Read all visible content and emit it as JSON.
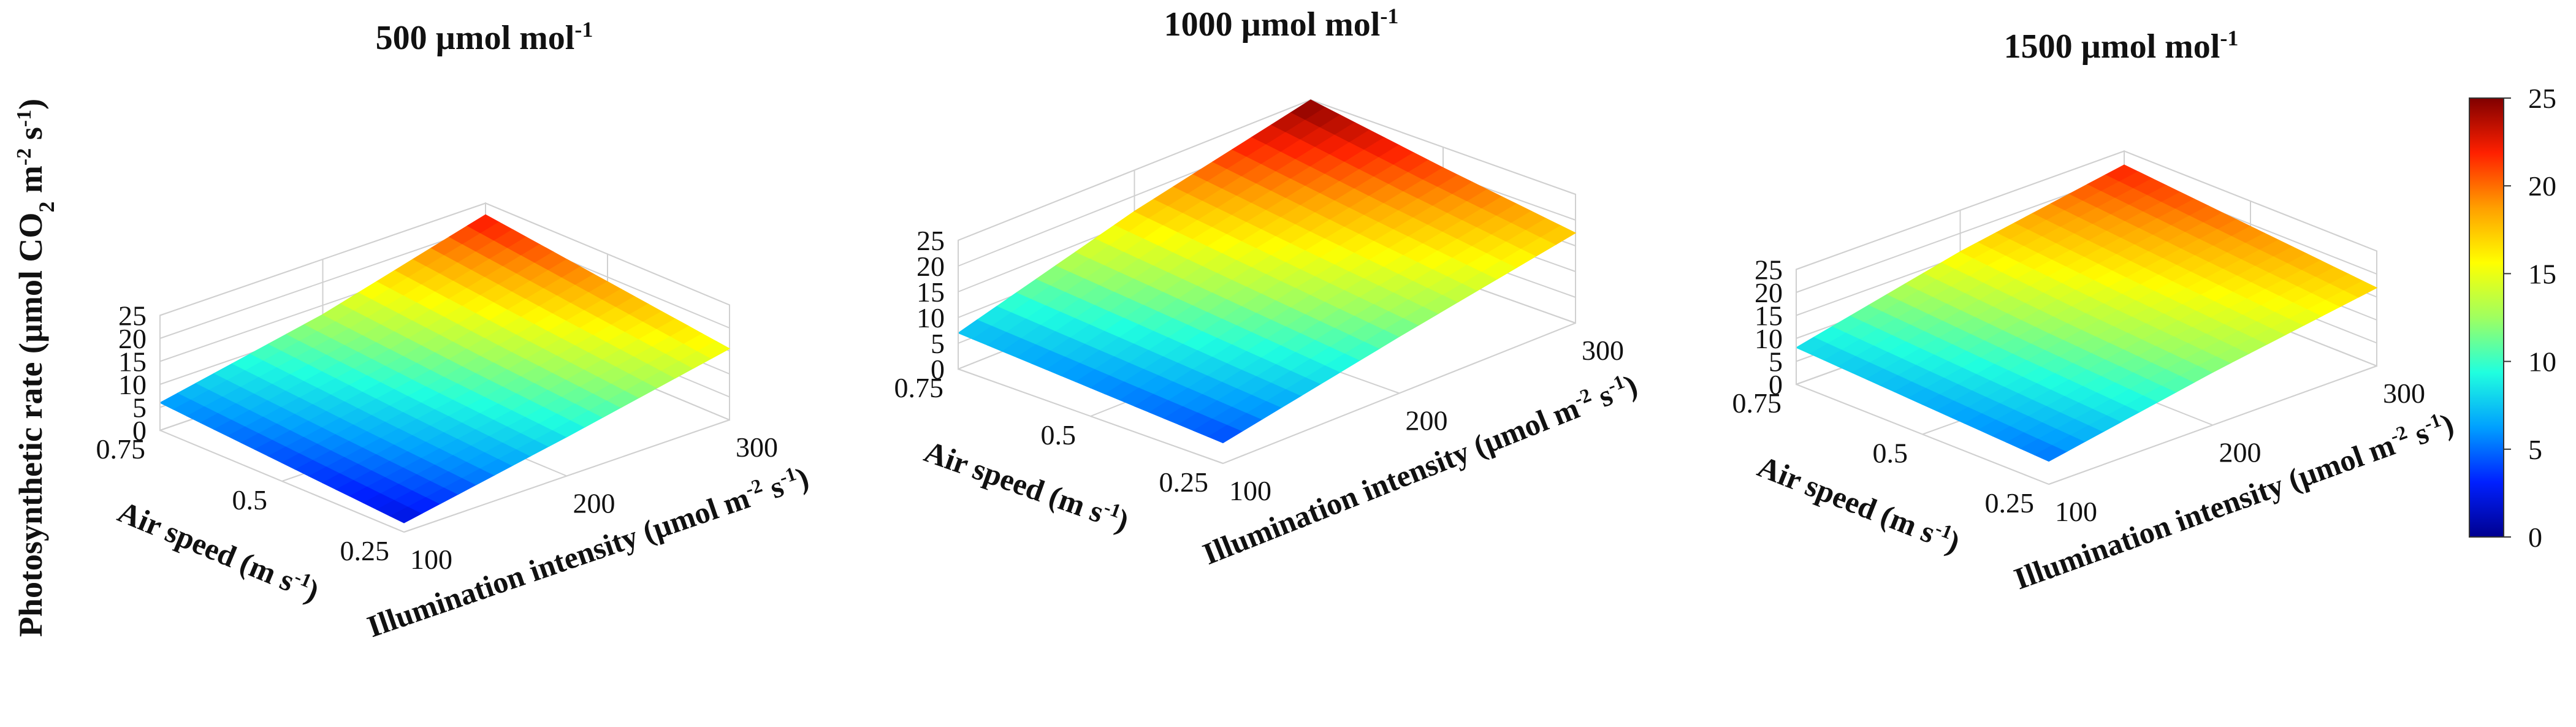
{
  "figure": {
    "ylabel_main": "Photosynthetic rate (µmol CO",
    "ylabel_sub": "2",
    "ylabel_unit": " m",
    "ylabel_exp1": "-2",
    "ylabel_s": " s",
    "ylabel_exp2": "-1",
    "ylabel_close": ")"
  },
  "colorbar": {
    "ticks": [
      "0",
      "5",
      "10",
      "15",
      "20",
      "25"
    ],
    "min": 0,
    "max": 25,
    "colors": [
      "#00008f",
      "#0020ff",
      "#00a0ff",
      "#20ffdf",
      "#9fff60",
      "#ffff00",
      "#ff9f00",
      "#ff2000",
      "#800000"
    ]
  },
  "chart_data": [
    {
      "type": "surface",
      "title": "500 µmol mol",
      "title_exp": "-1",
      "xlabel": "Illumination  intensity  (µmol m",
      "xlabel_exp1": "-2",
      "xlabel_mid": " s",
      "xlabel_exp2": "-1",
      "xlabel_close": ")",
      "ylabel": "Air speed (m s",
      "ylabel_exp": "-1",
      "ylabel_close": ")",
      "x_ticks": [
        "100",
        "200",
        "300"
      ],
      "y_ticks": [
        "0.75",
        "0.5",
        "0.25"
      ],
      "z_ticks": [
        "0",
        "5",
        "10",
        "15",
        "20",
        "25"
      ],
      "x": [
        100,
        200,
        300
      ],
      "y": [
        0.25,
        0.5,
        0.75
      ],
      "zlim": [
        0,
        25
      ],
      "z": [
        [
          2,
          8.5,
          15.5
        ],
        [
          4,
          10.5,
          19
        ],
        [
          6,
          13,
          22.5
        ]
      ]
    },
    {
      "type": "surface",
      "title": "1000 µmol mol",
      "title_exp": "-1",
      "xlabel": "Illumination  intensity  (µmol m",
      "xlabel_exp1": "-2",
      "xlabel_mid": " s",
      "xlabel_exp2": "-1",
      "xlabel_close": ")",
      "ylabel": "Air speed (m s",
      "ylabel_exp": "-1",
      "ylabel_close": ")",
      "x_ticks": [
        "100",
        "200",
        "300"
      ],
      "y_ticks": [
        "0.75",
        "0.5",
        "0.25"
      ],
      "z_ticks": [
        "0",
        "5",
        "10",
        "15",
        "20",
        "25"
      ],
      "x": [
        100,
        200,
        300
      ],
      "y": [
        0.25,
        0.5,
        0.75
      ],
      "zlim": [
        0,
        25
      ],
      "z": [
        [
          4,
          11,
          17.5
        ],
        [
          5.5,
          14,
          21
        ],
        [
          7,
          17,
          25
        ]
      ]
    },
    {
      "type": "surface",
      "title": "1500 µmol mol",
      "title_exp": "-1",
      "xlabel": "Illumination intensity (µmol m",
      "xlabel_exp1": "-2",
      "xlabel_mid": " s",
      "xlabel_exp2": "-1",
      "xlabel_close": ")",
      "ylabel": "Air speed (m s",
      "ylabel_exp": "-1",
      "ylabel_close": ")",
      "x_ticks": [
        "100",
        "200",
        "300"
      ],
      "y_ticks": [
        "0.75",
        "0.5",
        "0.25"
      ],
      "z_ticks": [
        "0",
        "5",
        "10",
        "15",
        "20",
        "25"
      ],
      "x": [
        100,
        200,
        300
      ],
      "y": [
        0.25,
        0.5,
        0.75
      ],
      "zlim": [
        0,
        25
      ],
      "z": [
        [
          5,
          11.5,
          17
        ],
        [
          6.5,
          13.5,
          19.5
        ],
        [
          8,
          16,
          22
        ]
      ]
    }
  ]
}
